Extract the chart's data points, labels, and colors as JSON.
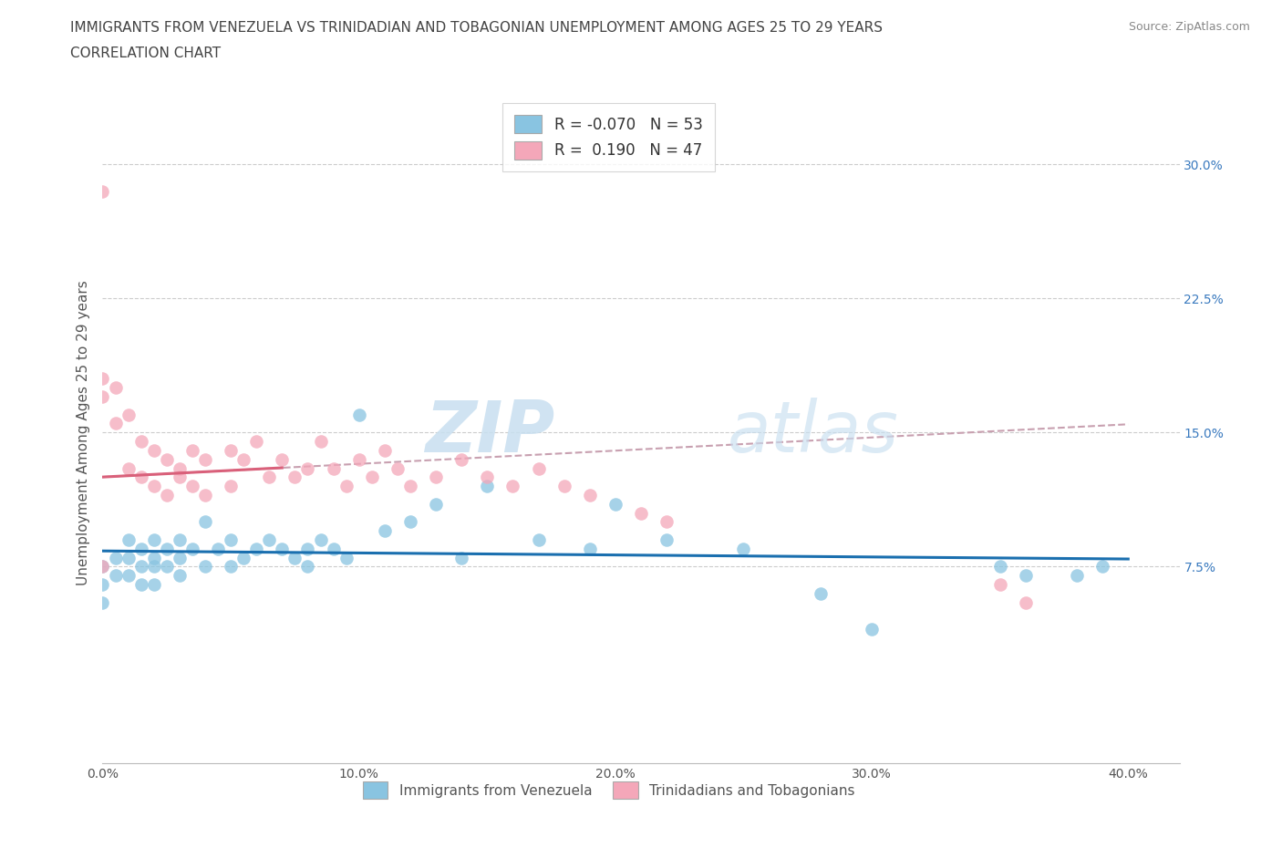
{
  "title_line1": "IMMIGRANTS FROM VENEZUELA VS TRINIDADIAN AND TOBAGONIAN UNEMPLOYMENT AMONG AGES 25 TO 29 YEARS",
  "title_line2": "CORRELATION CHART",
  "source": "Source: ZipAtlas.com",
  "ylabel": "Unemployment Among Ages 25 to 29 years",
  "xlim": [
    0.0,
    0.42
  ],
  "ylim": [
    -0.035,
    0.335
  ],
  "xticks": [
    0.0,
    0.1,
    0.2,
    0.3,
    0.4
  ],
  "xticklabels": [
    "0.0%",
    "10.0%",
    "20.0%",
    "30.0%",
    "40.0%"
  ],
  "ytick_positions": [
    0.075,
    0.15,
    0.225,
    0.3
  ],
  "ytick_labels": [
    "7.5%",
    "15.0%",
    "22.5%",
    "30.0%"
  ],
  "blue_color": "#89c4e1",
  "pink_color": "#f4a7b9",
  "blue_line_color": "#1a6faf",
  "pink_line_color": "#d9607a",
  "dashed_line_color": "#c8a0b0",
  "R_blue": -0.07,
  "N_blue": 53,
  "R_pink": 0.19,
  "N_pink": 47,
  "legend_label_blue": "Immigrants from Venezuela",
  "legend_label_pink": "Trinidadians and Tobagonians",
  "watermark_zip": "ZIP",
  "watermark_atlas": "atlas",
  "title_fontsize": 11,
  "subtitle_fontsize": 11,
  "axis_label_fontsize": 11,
  "tick_fontsize": 10,
  "legend_fontsize": 12,
  "blue_scatter_x": [
    0.0,
    0.0,
    0.0,
    0.005,
    0.005,
    0.01,
    0.01,
    0.01,
    0.015,
    0.015,
    0.015,
    0.02,
    0.02,
    0.02,
    0.02,
    0.025,
    0.025,
    0.03,
    0.03,
    0.03,
    0.035,
    0.04,
    0.04,
    0.045,
    0.05,
    0.05,
    0.055,
    0.06,
    0.065,
    0.07,
    0.075,
    0.08,
    0.08,
    0.085,
    0.09,
    0.095,
    0.1,
    0.11,
    0.12,
    0.13,
    0.14,
    0.15,
    0.17,
    0.19,
    0.2,
    0.22,
    0.25,
    0.28,
    0.3,
    0.35,
    0.36,
    0.38,
    0.39
  ],
  "blue_scatter_y": [
    0.075,
    0.065,
    0.055,
    0.08,
    0.07,
    0.09,
    0.08,
    0.07,
    0.085,
    0.075,
    0.065,
    0.09,
    0.08,
    0.075,
    0.065,
    0.085,
    0.075,
    0.09,
    0.08,
    0.07,
    0.085,
    0.1,
    0.075,
    0.085,
    0.09,
    0.075,
    0.08,
    0.085,
    0.09,
    0.085,
    0.08,
    0.085,
    0.075,
    0.09,
    0.085,
    0.08,
    0.16,
    0.095,
    0.1,
    0.11,
    0.08,
    0.12,
    0.09,
    0.085,
    0.11,
    0.09,
    0.085,
    0.06,
    0.04,
    0.075,
    0.07,
    0.07,
    0.075
  ],
  "pink_scatter_x": [
    0.0,
    0.0,
    0.0,
    0.0,
    0.005,
    0.005,
    0.01,
    0.01,
    0.015,
    0.015,
    0.02,
    0.02,
    0.025,
    0.025,
    0.03,
    0.03,
    0.035,
    0.035,
    0.04,
    0.04,
    0.05,
    0.05,
    0.055,
    0.06,
    0.065,
    0.07,
    0.075,
    0.08,
    0.085,
    0.09,
    0.095,
    0.1,
    0.105,
    0.11,
    0.115,
    0.12,
    0.13,
    0.14,
    0.15,
    0.16,
    0.17,
    0.18,
    0.19,
    0.21,
    0.22,
    0.35,
    0.36
  ],
  "pink_scatter_y": [
    0.285,
    0.18,
    0.17,
    0.075,
    0.175,
    0.155,
    0.16,
    0.13,
    0.145,
    0.125,
    0.14,
    0.12,
    0.135,
    0.115,
    0.13,
    0.125,
    0.14,
    0.12,
    0.135,
    0.115,
    0.14,
    0.12,
    0.135,
    0.145,
    0.125,
    0.135,
    0.125,
    0.13,
    0.145,
    0.13,
    0.12,
    0.135,
    0.125,
    0.14,
    0.13,
    0.12,
    0.125,
    0.135,
    0.125,
    0.12,
    0.13,
    0.12,
    0.115,
    0.105,
    0.1,
    0.065,
    0.055
  ]
}
